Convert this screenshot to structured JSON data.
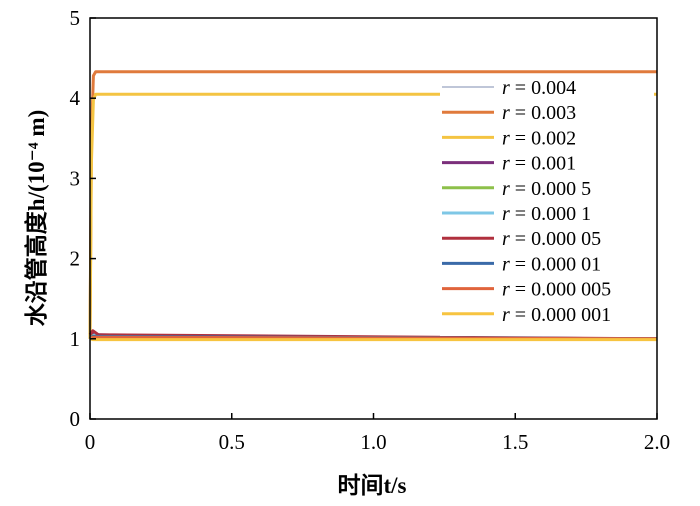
{
  "chart_data": {
    "type": "line",
    "xlabel": "时间t/s",
    "ylabel": "水沿管高度h/(10⁻⁴ m)",
    "xlim": [
      0,
      2.0
    ],
    "ylim": [
      0,
      5
    ],
    "x_ticks": [
      "0",
      "0.5",
      "1.0",
      "1.5",
      "2.0"
    ],
    "y_ticks": [
      "0",
      "1",
      "2",
      "3",
      "4",
      "5"
    ],
    "grid": false,
    "legend_position": "right",
    "series": [
      {
        "name": "r = 0.004",
        "color": "#aab4cc",
        "width": 1.5,
        "points": [
          [
            0,
            1.05
          ],
          [
            0.01,
            1.08
          ],
          [
            0.03,
            1.05
          ],
          [
            0.06,
            1.03
          ],
          [
            0.5,
            1.01
          ],
          [
            2.0,
            1.0
          ]
        ]
      },
      {
        "name": "r = 0.003",
        "color": "#e07a3c",
        "width": 3,
        "points": [
          [
            0,
            1.0
          ],
          [
            0.005,
            3.5
          ],
          [
            0.012,
            4.28
          ],
          [
            0.02,
            4.33
          ],
          [
            2.0,
            4.33
          ]
        ]
      },
      {
        "name": "r = 0.002",
        "color": "#f4c442",
        "width": 3,
        "points": [
          [
            0,
            1.0
          ],
          [
            0.005,
            3.2
          ],
          [
            0.012,
            3.98
          ],
          [
            0.02,
            4.05
          ],
          [
            2.0,
            4.05
          ]
        ]
      },
      {
        "name": "r = 0.001",
        "color": "#7b2f7b",
        "width": 3,
        "points": [
          [
            0,
            1.05
          ],
          [
            0.01,
            1.07
          ],
          [
            0.03,
            1.05
          ],
          [
            0.3,
            1.03
          ],
          [
            0.6,
            1.01
          ],
          [
            2.0,
            1.0
          ]
        ]
      },
      {
        "name": "r = 0.000 5",
        "color": "#8dc04a",
        "width": 3,
        "points": [
          [
            0,
            1.0
          ],
          [
            0.01,
            1.04
          ],
          [
            0.05,
            1.02
          ],
          [
            2.0,
            1.0
          ]
        ]
      },
      {
        "name": "r = 0.000 1",
        "color": "#7ec7e6",
        "width": 3,
        "points": [
          [
            0,
            1.0
          ],
          [
            0.02,
            1.06
          ],
          [
            0.06,
            1.03
          ],
          [
            2.0,
            1.0
          ]
        ]
      },
      {
        "name": "r = 0.000 05",
        "color": "#b0303e",
        "width": 3,
        "points": [
          [
            0,
            1.05
          ],
          [
            0.01,
            1.1
          ],
          [
            0.03,
            1.05
          ],
          [
            2.0,
            1.0
          ]
        ]
      },
      {
        "name": "r = 0.000 01",
        "color": "#3a6aa8",
        "width": 3,
        "points": [
          [
            0,
            1.0
          ],
          [
            0.01,
            1.03
          ],
          [
            2.0,
            1.0
          ]
        ]
      },
      {
        "name": "r = 0.000 005",
        "color": "#e0643c",
        "width": 3,
        "points": [
          [
            0,
            1.0
          ],
          [
            0.01,
            1.02
          ],
          [
            2.0,
            1.0
          ]
        ]
      },
      {
        "name": "r = 0.000 001",
        "color": "#f7c440",
        "width": 3,
        "points": [
          [
            0,
            1.0
          ],
          [
            0.01,
            0.99
          ],
          [
            2.0,
            0.99
          ]
        ]
      }
    ]
  }
}
